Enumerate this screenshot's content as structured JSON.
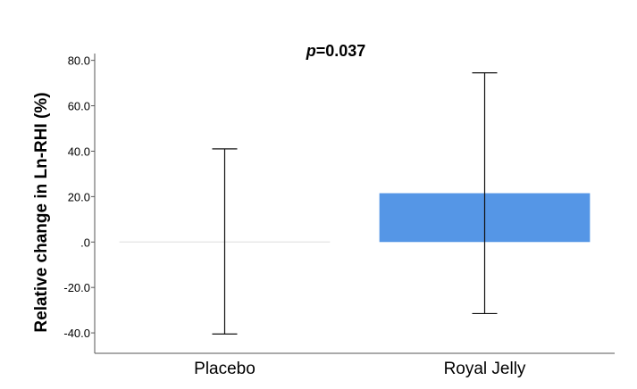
{
  "chart_data": {
    "type": "bar",
    "title": "",
    "annotation": {
      "italic_part": "p",
      "rest": "=0.037"
    },
    "xlabel": "",
    "ylabel": "Relative change in Ln-RHI (%)",
    "categories": [
      "Placebo",
      "Royal Jelly"
    ],
    "values": [
      0.0,
      21.5
    ],
    "error_low": [
      -40.5,
      -31.5
    ],
    "error_high": [
      41.0,
      74.5
    ],
    "ylim": [
      -49,
      83
    ],
    "yticks": [
      80,
      60,
      40,
      20,
      0,
      -20,
      -40
    ],
    "ytick_labels": [
      "80.0",
      "60.0",
      "40.0",
      "20.0",
      ".0",
      "-20.0",
      "-40.0"
    ],
    "grid": false,
    "legend": "none",
    "colors": {
      "bar": "#5596e6",
      "axis": "#555555",
      "error_bar": "#111111",
      "zero_bar": "#e8e8e8"
    }
  }
}
